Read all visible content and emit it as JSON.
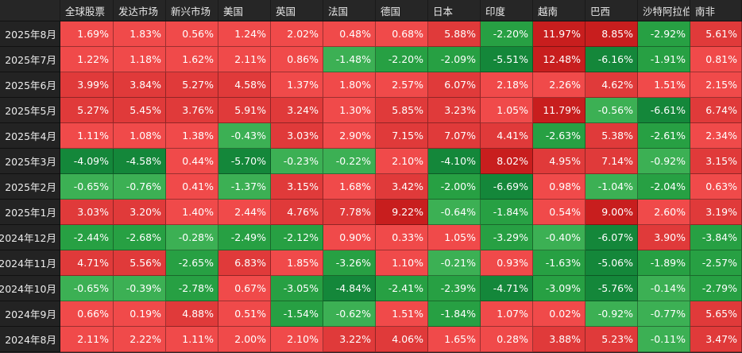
{
  "colors": {
    "pos_light": "#f04a4a",
    "pos_mid": "#e03a3a",
    "pos_dark": "#c81e1e",
    "neg_light": "#3cb054",
    "neg_mid": "#27a043",
    "neg_dark": "#14873a"
  },
  "chart_data": {
    "type": "heatmap",
    "columns": [
      "全球股票",
      "发达市场",
      "新兴市场",
      "美国",
      "英国",
      "法国",
      "德国",
      "日本",
      "印度",
      "越南",
      "巴西",
      "沙特阿拉伯",
      "南非"
    ],
    "rows": [
      "2025年8月",
      "2025年7月",
      "2025年6月",
      "2025年5月",
      "2025年4月",
      "2025年3月",
      "2025年2月",
      "2025年1月",
      "2024年12月",
      "2024年11月",
      "2024年10月",
      "2024年9月",
      "2024年8月"
    ],
    "values": [
      [
        1.69,
        1.83,
        0.56,
        1.24,
        2.02,
        0.48,
        0.68,
        5.88,
        -2.2,
        11.97,
        8.85,
        -2.92,
        5.61
      ],
      [
        1.22,
        1.18,
        1.62,
        2.11,
        0.86,
        -1.48,
        -2.2,
        -2.09,
        -5.51,
        12.48,
        -6.16,
        -1.91,
        0.81
      ],
      [
        3.99,
        3.84,
        5.27,
        4.58,
        1.37,
        1.8,
        2.57,
        6.07,
        2.18,
        2.26,
        4.62,
        1.51,
        2.15
      ],
      [
        5.27,
        5.45,
        3.76,
        5.91,
        3.24,
        1.3,
        5.85,
        3.23,
        1.05,
        11.79,
        -0.56,
        -6.61,
        6.74
      ],
      [
        1.11,
        1.08,
        1.38,
        -0.43,
        3.03,
        2.9,
        7.15,
        7.07,
        4.41,
        -2.63,
        5.38,
        -2.61,
        2.34
      ],
      [
        -4.09,
        -4.58,
        0.44,
        -5.7,
        -0.23,
        -0.22,
        2.1,
        -4.1,
        8.02,
        4.95,
        7.14,
        -0.92,
        3.15
      ],
      [
        -0.65,
        -0.76,
        0.41,
        -1.37,
        3.15,
        1.68,
        3.42,
        -2.0,
        -6.69,
        0.98,
        -1.04,
        -2.04,
        0.63
      ],
      [
        3.03,
        3.2,
        1.4,
        2.44,
        4.76,
        7.78,
        9.22,
        -0.64,
        -1.84,
        0.54,
        9.0,
        2.6,
        3.19
      ],
      [
        -2.44,
        -2.68,
        -0.28,
        -2.49,
        -2.12,
        0.9,
        0.33,
        1.05,
        -3.29,
        -0.4,
        -6.07,
        3.9,
        -3.84
      ],
      [
        4.71,
        5.56,
        -2.65,
        6.83,
        1.85,
        -3.26,
        1.1,
        -0.21,
        0.93,
        -1.63,
        -5.06,
        -1.89,
        -2.57
      ],
      [
        -0.65,
        -0.39,
        -2.78,
        0.67,
        -3.05,
        -4.84,
        -2.41,
        -2.39,
        -4.71,
        -3.09,
        -5.76,
        -0.14,
        -2.79
      ],
      [
        0.66,
        0.19,
        4.88,
        0.51,
        -1.54,
        -0.62,
        1.51,
        -1.84,
        1.07,
        0.02,
        -0.92,
        -0.77,
        5.65
      ],
      [
        2.11,
        2.22,
        1.11,
        2.0,
        2.1,
        3.22,
        4.06,
        1.65,
        0.28,
        3.88,
        5.23,
        -0.11,
        3.47
      ]
    ],
    "unit": "%",
    "color_rule": "positive=red, negative=green"
  }
}
